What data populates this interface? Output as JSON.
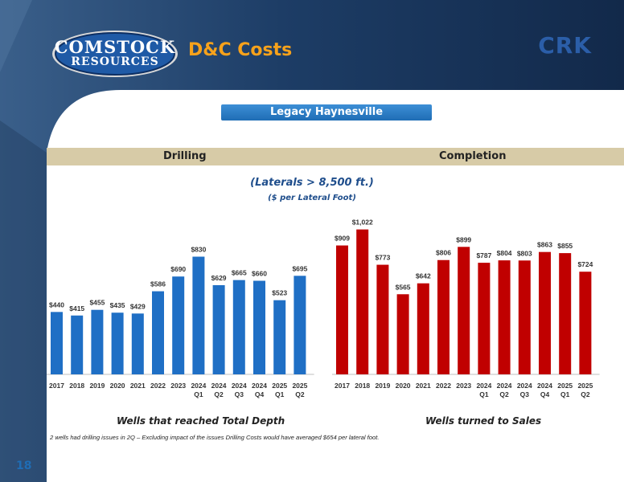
{
  "header": {
    "logo_line1": "COMSTOCK",
    "logo_line2": "RESOURCES",
    "title": "D&C Costs",
    "ticker": "CRK"
  },
  "section": {
    "box_label": "Legacy Haynesville",
    "left_band": "Drilling",
    "right_band": "Completion",
    "subtitle": "(Laterals > 8,500 ft.)",
    "unit": "($ per Lateral Foot)"
  },
  "colors": {
    "drilling": "#1f6fc5",
    "completion": "#c00000",
    "title": "#f7a21b",
    "navy": "#1c3c6e"
  },
  "chart_data": [
    {
      "type": "bar",
      "categories": [
        "2017",
        "2018",
        "2019",
        "2020",
        "2021",
        "2022",
        "2023",
        "2024 Q1",
        "2024 Q2",
        "2024 Q3",
        "2024 Q4",
        "2025 Q1",
        "2025 Q2"
      ],
      "values": [
        440,
        415,
        455,
        435,
        429,
        586,
        690,
        830,
        629,
        665,
        660,
        523,
        695
      ],
      "labels": [
        "$440",
        "$415",
        "$455",
        "$435",
        "$429",
        "$586",
        "$690",
        "$830",
        "$629",
        "$665",
        "$660",
        "$523",
        "$695"
      ],
      "xlabel": "Wells that reached Total Depth",
      "ylim": [
        0,
        1100
      ]
    },
    {
      "type": "bar",
      "categories": [
        "2017",
        "2018",
        "2019",
        "2020",
        "2021",
        "2022",
        "2023",
        "2024 Q1",
        "2024 Q2",
        "2024 Q3",
        "2024 Q4",
        "2025 Q1",
        "2025 Q2"
      ],
      "values": [
        909,
        1022,
        773,
        565,
        642,
        806,
        899,
        787,
        804,
        803,
        863,
        855,
        724
      ],
      "labels": [
        "$909",
        "$1,022",
        "$773",
        "$565",
        "$642",
        "$806",
        "$899",
        "$787",
        "$804",
        "$803",
        "$863",
        "$855",
        "$724"
      ],
      "xlabel": "Wells turned to Sales",
      "ylim": [
        0,
        1100
      ]
    }
  ],
  "footnote": "2 wells had drilling issues in 2Q – Excluding impact of the issues Drilling Costs would have averaged $654 per lateral foot.",
  "page_number": "18"
}
